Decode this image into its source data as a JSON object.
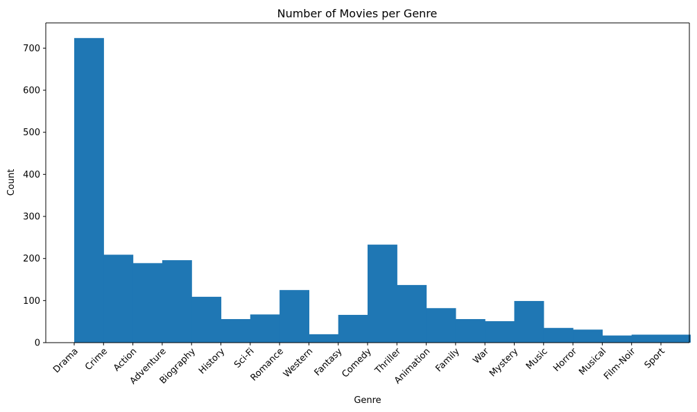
{
  "chart_data": {
    "type": "bar",
    "title": "Number of Movies per Genre",
    "xlabel": "Genre",
    "ylabel": "Count",
    "categories": [
      "Drama",
      "Crime",
      "Action",
      "Adventure",
      "Biography",
      "History",
      "Sci-Fi",
      "Romance",
      "Western",
      "Fantasy",
      "Comedy",
      "Thriller",
      "Animation",
      "Family",
      "War",
      "Mystery",
      "Music",
      "Horror",
      "Musical",
      "Film-Noir",
      "Sport"
    ],
    "values": [
      724,
      209,
      189,
      196,
      109,
      56,
      67,
      125,
      20,
      66,
      233,
      137,
      82,
      56,
      51,
      99,
      35,
      31,
      17,
      19,
      19
    ],
    "ylim": [
      0,
      760
    ],
    "yticks": [
      0,
      100,
      200,
      300,
      400,
      500,
      600,
      700
    ],
    "bar_color": "#1f77b4",
    "grid": false,
    "legend": "none"
  }
}
